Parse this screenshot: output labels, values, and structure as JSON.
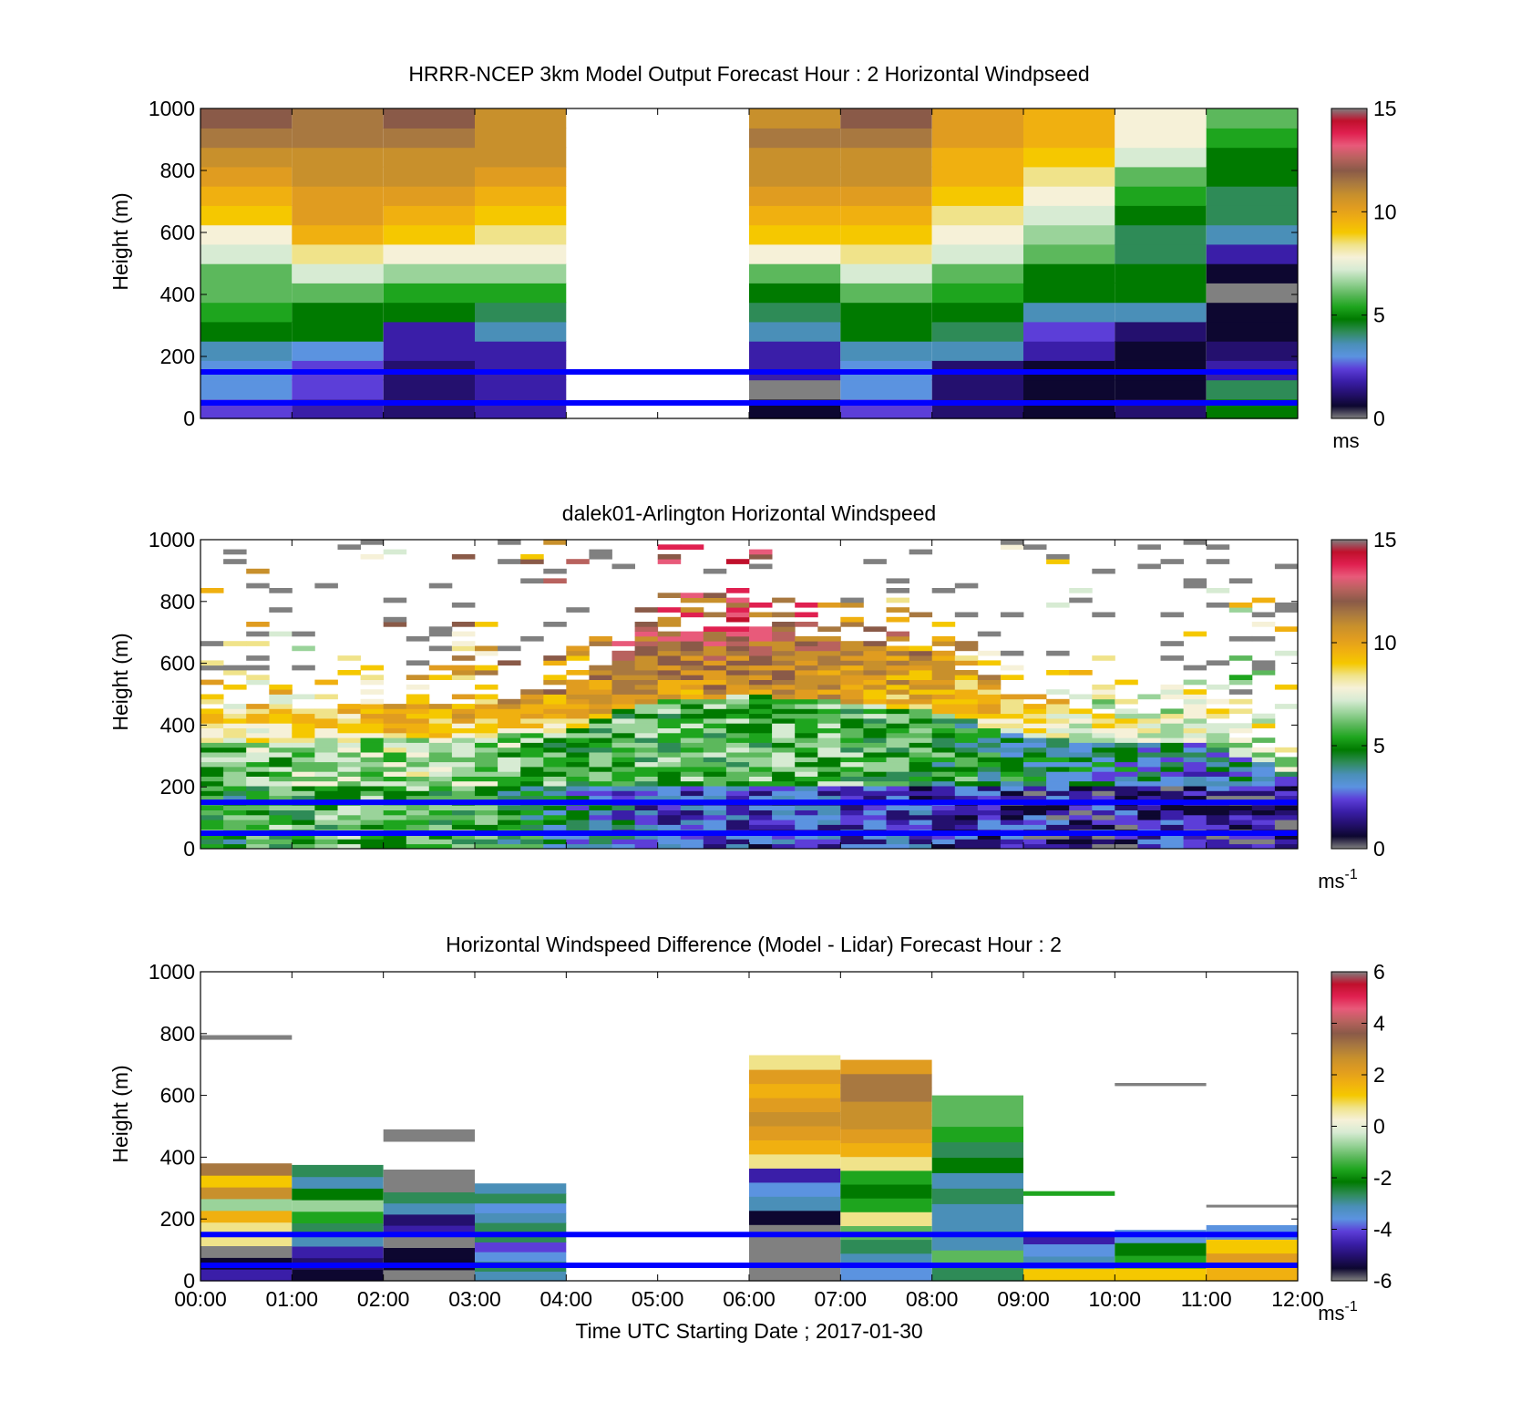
{
  "colormaps": {
    "windspeed": [
      "#808080",
      "#0d0730",
      "#24106e",
      "#3a1ea8",
      "#5c3ed8",
      "#5b93e0",
      "#4a8fb8",
      "#2e8b57",
      "#007a00",
      "#1ea51e",
      "#5cb85c",
      "#9ad39a",
      "#d7ebd3",
      "#f6f1d8",
      "#f0e38a",
      "#f5c800",
      "#f0b010",
      "#e09c20",
      "#c8902c",
      "#a87840",
      "#8a5a48",
      "#b8625e",
      "#e85a7a",
      "#e02050",
      "#c0102c",
      "#808080"
    ],
    "difference": [
      "#808080",
      "#0d0730",
      "#24106e",
      "#3a1ea8",
      "#5c3ed8",
      "#5b93e0",
      "#4a8fb8",
      "#2e8b57",
      "#007a00",
      "#1ea51e",
      "#5cb85c",
      "#9ad39a",
      "#d7ebd3",
      "#f6f1d8",
      "#f0e38a",
      "#f5c800",
      "#f0b010",
      "#e09c20",
      "#c8902c",
      "#a87840",
      "#8a5a48",
      "#b8625e",
      "#e85a7a",
      "#e02050",
      "#c0102c",
      "#808080"
    ],
    "line_color": "#0000ff"
  },
  "x_tick_labels": [
    "00:00",
    "01:00",
    "02:00",
    "03:00",
    "04:00",
    "05:00",
    "06:00",
    "07:00",
    "08:00",
    "09:00",
    "10:00",
    "11:00",
    "12:00"
  ],
  "xlabel": "Time UTC  Starting Date ; 2017-01-30",
  "chart_data": [
    {
      "type": "heatmap",
      "title": "HRRR-NCEP 3km Model Output   Forecast Hour : 2 Horizontal Windpseed",
      "ylabel": "Height (m)",
      "xlim": [
        0,
        12
      ],
      "ylim": [
        0,
        1000
      ],
      "y_ticks": [
        0,
        200,
        400,
        600,
        800,
        1000
      ],
      "colorbar": {
        "range": [
          0,
          15
        ],
        "ticks": [
          0,
          5,
          10,
          15
        ],
        "unit": "ms",
        "unit_sup": ""
      },
      "lines_y": [
        150,
        50
      ],
      "columns": [
        {
          "t0": 0,
          "t1": 1,
          "values": [
            2.5,
            2.8,
            3.2,
            3.8,
            4.5,
            5.5,
            6.0,
            6.2,
            7.0,
            8.0,
            9.0,
            9.5,
            10.0,
            10.8,
            11.5,
            12.0
          ]
        },
        {
          "t0": 1,
          "t1": 2,
          "values": [
            2.0,
            2.2,
            2.5,
            3.0,
            4.5,
            5.0,
            6.0,
            7.0,
            8.5,
            9.5,
            10.0,
            10.3,
            10.6,
            11.0,
            11.3,
            11.6
          ]
        },
        {
          "t0": 2,
          "t1": 3,
          "values": [
            1.0,
            1.2,
            1.0,
            1.5,
            2.0,
            5.0,
            5.5,
            6.5,
            8.0,
            9.0,
            9.5,
            10.0,
            10.5,
            11.0,
            11.5,
            11.8
          ]
        },
        {
          "t0": 3,
          "t1": 4,
          "values": [
            1.5,
            1.5,
            1.8,
            2.0,
            3.5,
            4.0,
            5.5,
            6.5,
            7.5,
            8.5,
            9.0,
            9.5,
            10.0,
            10.5,
            10.8,
            11.0
          ]
        },
        {
          "t0": 6,
          "t1": 7,
          "values": [
            0.5,
            0,
            1.5,
            2.0,
            3.5,
            4.0,
            5.0,
            6.0,
            8.0,
            9.0,
            9.5,
            10.0,
            10.5,
            11.0,
            11.2,
            11.0
          ]
        },
        {
          "t0": 7,
          "t1": 8,
          "values": [
            2.5,
            3.0,
            3.2,
            3.6,
            4.5,
            5.0,
            6.0,
            7.0,
            8.5,
            9.0,
            9.5,
            10.0,
            10.5,
            11.0,
            11.5,
            11.8
          ]
        },
        {
          "t0": 8,
          "t1": 9,
          "values": [
            1.0,
            1.0,
            1.2,
            3.5,
            4.0,
            4.5,
            5.5,
            6.0,
            7.0,
            8.0,
            8.5,
            9.0,
            9.3,
            9.6,
            10.0,
            10.2
          ]
        },
        {
          "t0": 9,
          "t1": 10,
          "values": [
            0.5,
            0.3,
            0.8,
            1.5,
            2.5,
            3.5,
            4.5,
            5.0,
            6.0,
            6.5,
            7.0,
            8.0,
            8.5,
            9.0,
            9.5,
            9.8
          ]
        },
        {
          "t0": 10,
          "t1": 11,
          "values": [
            1.0,
            0.5,
            0.8,
            0.5,
            1.0,
            3.5,
            5.0,
            4.5,
            4.0,
            4.0,
            4.5,
            5.5,
            6.0,
            7.0,
            7.5,
            7.8
          ]
        },
        {
          "t0": 11,
          "t1": 12,
          "values": [
            4.5,
            4.0,
            1.5,
            1.0,
            0.8,
            0.5,
            0,
            0.5,
            1.5,
            3.5,
            4.0,
            4.0,
            4.5,
            5.0,
            5.5,
            6.0
          ]
        }
      ]
    },
    {
      "type": "heatmap",
      "title": "dalek01-Arlington  Horizontal Windspeed",
      "ylabel": "Height (m)",
      "xlim": [
        0,
        12
      ],
      "ylim": [
        0,
        1000
      ],
      "y_ticks": [
        0,
        200,
        400,
        600,
        800,
        1000
      ],
      "colorbar": {
        "range": [
          0,
          15
        ],
        "ticks": [
          0,
          5,
          10,
          15
        ],
        "unit": "ms",
        "unit_sup": "-1"
      },
      "lines_y": [
        150,
        50
      ],
      "profile": {
        "hours": [
          0,
          1,
          2,
          3,
          4,
          5,
          6,
          7,
          8,
          9,
          10,
          11,
          12
        ],
        "low_speed": [
          5.0,
          5.5,
          6.0,
          5.5,
          4.0,
          2.5,
          2.0,
          2.5,
          2.0,
          1.5,
          1.5,
          1.5,
          1.0
        ],
        "mid_speed": [
          6.5,
          7.5,
          8.0,
          7.5,
          7.0,
          9.0,
          9.5,
          9.5,
          8.5,
          7.0,
          6.0,
          5.5,
          5.0
        ],
        "high_speed": [
          9.0,
          9.0,
          9.5,
          10.0,
          11.0,
          12.5,
          12.5,
          11.5,
          10.5,
          9.0,
          8.0,
          7.5,
          7.0
        ],
        "top_height": [
          440,
          450,
          470,
          470,
          520,
          700,
          720,
          680,
          640,
          480,
          440,
          430,
          260
        ]
      }
    },
    {
      "type": "heatmap",
      "title": "Horizontal Windspeed Difference (Model - Lidar) Forecast Hour : 2",
      "ylabel": "Height (m)",
      "xlim": [
        0,
        12
      ],
      "ylim": [
        0,
        1000
      ],
      "y_ticks": [
        0,
        200,
        400,
        600,
        800,
        1000
      ],
      "colorbar": {
        "range": [
          -6,
          6
        ],
        "ticks": [
          -6,
          -4,
          -2,
          0,
          2,
          4,
          6
        ],
        "unit": "ms",
        "unit_sup": "-1"
      },
      "lines_y": [
        150,
        50
      ],
      "columns": [
        {
          "t0": 0,
          "t1": 1,
          "top": 380,
          "values": [
            -4.5,
            -5.5,
            -6,
            0.5,
            0.5,
            1.5,
            -0.5,
            2.5,
            1.0,
            3.0
          ]
        },
        {
          "t0": 1,
          "t1": 2,
          "top": 375,
          "values": [
            -5.5,
            -5.0,
            -4.5,
            -3.0,
            -2.5,
            -1.5,
            -0.5,
            -2.0,
            -3.0,
            -2.5
          ]
        },
        {
          "t0": 2,
          "t1": 3,
          "top": 360,
          "values": [
            -6,
            -5.5,
            -5.5,
            -6,
            -4.5,
            -5.0,
            -3.0,
            -2.5,
            -6,
            -6
          ]
        },
        {
          "t0": 3,
          "t1": 4,
          "top": 315,
          "values": [
            -3.0,
            -2.5,
            -3.5,
            -4.0,
            -2.5,
            -2.5,
            -3.0,
            -3.5,
            -2.5,
            -3.0
          ]
        },
        {
          "t0": 6,
          "t1": 7,
          "top": 730,
          "values": [
            -6,
            -6,
            -6,
            -6,
            -5.5,
            -3.0,
            -3.5,
            -4.5,
            0.5,
            1.5,
            2.0,
            2.5,
            2.0,
            1.5,
            2.0,
            0.5
          ]
        },
        {
          "t0": 7,
          "t1": 8,
          "top": 715,
          "values": [
            -3.5,
            -3.0,
            -2.5,
            -1.0,
            0.5,
            -1.5,
            -2.0,
            -1.5,
            0.5,
            1.5,
            2.0,
            2.5,
            2.5,
            3.0,
            3.0,
            2.0
          ]
        },
        {
          "t0": 8,
          "t1": 9,
          "top": 600,
          "values": [
            -2.5,
            -1.0,
            -3.0,
            -3.0,
            -3.0,
            -2.5,
            -3.0,
            -2.0,
            -2.5,
            -1.5,
            -1.0,
            -1.0
          ]
        },
        {
          "t0": 9,
          "t1": 10,
          "top": 160,
          "values": [
            1.0,
            -3.0,
            -3.5,
            -4.5
          ]
        },
        {
          "t0": 10,
          "t1": 11,
          "top": 165,
          "values": [
            1.0,
            -1.5,
            -2.0,
            -3.5
          ]
        },
        {
          "t0": 11,
          "t1": 12,
          "top": 180,
          "values": [
            1.5,
            2.0,
            1.0,
            -3.5
          ]
        }
      ],
      "isolated": [
        {
          "t0": 0.0,
          "t1": 1.0,
          "y0": 780,
          "y1": 795,
          "v": 6
        },
        {
          "t0": 2.0,
          "t1": 3.0,
          "y0": 450,
          "y1": 490,
          "v": 6
        },
        {
          "t0": 9.0,
          "t1": 10.0,
          "y0": 275,
          "y1": 290,
          "v": -1.5
        },
        {
          "t0": 10.0,
          "t1": 11.0,
          "y0": 630,
          "y1": 640,
          "v": 6
        },
        {
          "t0": 11.0,
          "t1": 12.0,
          "y0": 238,
          "y1": 246,
          "v": -6
        }
      ]
    }
  ]
}
